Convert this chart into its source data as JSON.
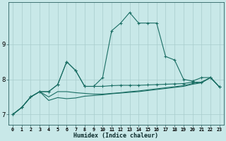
{
  "xlabel": "Humidex (Indice chaleur)",
  "bg_color": "#c8e8e8",
  "grid_color": "#a8cccc",
  "line_color": "#1a6e64",
  "x": [
    0,
    1,
    2,
    3,
    4,
    5,
    6,
    7,
    8,
    9,
    10,
    11,
    12,
    13,
    14,
    15,
    16,
    17,
    18,
    19,
    20,
    21,
    22,
    23
  ],
  "series": [
    [
      7.0,
      7.2,
      7.5,
      7.65,
      7.65,
      7.85,
      8.5,
      8.25,
      7.8,
      7.8,
      8.05,
      9.38,
      9.6,
      9.9,
      9.6,
      9.6,
      9.6,
      8.65,
      8.55,
      8.0,
      7.95,
      8.05,
      8.05,
      7.78
    ],
    [
      7.0,
      7.2,
      7.5,
      7.65,
      7.65,
      7.85,
      8.5,
      8.25,
      7.8,
      7.8,
      7.8,
      7.82,
      7.83,
      7.83,
      7.83,
      7.84,
      7.85,
      7.86,
      7.87,
      7.88,
      7.92,
      7.92,
      8.05,
      7.78
    ],
    [
      7.0,
      7.2,
      7.5,
      7.65,
      7.5,
      7.65,
      7.65,
      7.62,
      7.6,
      7.58,
      7.58,
      7.6,
      7.62,
      7.65,
      7.67,
      7.7,
      7.73,
      7.76,
      7.79,
      7.82,
      7.88,
      7.92,
      8.05,
      7.78
    ],
    [
      7.0,
      7.2,
      7.5,
      7.65,
      7.4,
      7.48,
      7.45,
      7.47,
      7.52,
      7.54,
      7.56,
      7.59,
      7.61,
      7.63,
      7.65,
      7.68,
      7.71,
      7.74,
      7.77,
      7.8,
      7.86,
      7.9,
      8.05,
      7.78
    ]
  ],
  "has_markers": [
    true,
    true,
    false,
    false
  ],
  "ylim": [
    6.7,
    10.2
  ],
  "yticks": [
    7,
    8,
    9
  ],
  "xticks": [
    0,
    1,
    2,
    3,
    4,
    5,
    6,
    7,
    8,
    9,
    10,
    11,
    12,
    13,
    14,
    15,
    16,
    17,
    18,
    19,
    20,
    21,
    22,
    23
  ]
}
